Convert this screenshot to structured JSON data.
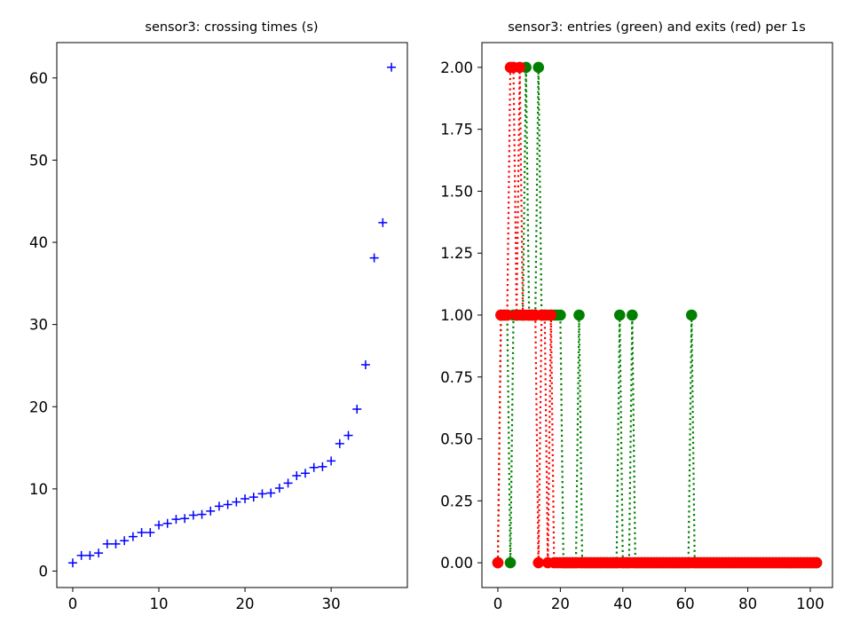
{
  "chart_data": [
    {
      "type": "scatter",
      "title": "sensor3: crossing times (s)",
      "xlim": [
        -1.85,
        38.85
      ],
      "ylim": [
        -2.0,
        64.3
      ],
      "xticks": [
        0,
        10,
        20,
        30
      ],
      "yticks": [
        0,
        10,
        20,
        30,
        40,
        50,
        60
      ],
      "grid": false,
      "series": [
        {
          "marker": "plus",
          "color": "#0000ff",
          "x": [
            0,
            1,
            2,
            3,
            4,
            5,
            6,
            7,
            8,
            9,
            10,
            11,
            12,
            13,
            14,
            15,
            16,
            17,
            18,
            19,
            20,
            21,
            22,
            23,
            24,
            25,
            26,
            27,
            28,
            29,
            30,
            31,
            32,
            33,
            34,
            35,
            36,
            37
          ],
          "y": [
            1.0,
            1.9,
            1.9,
            2.2,
            3.3,
            3.3,
            3.7,
            4.2,
            4.7,
            4.7,
            5.6,
            5.8,
            6.3,
            6.4,
            6.8,
            6.9,
            7.3,
            7.9,
            8.1,
            8.4,
            8.8,
            9.0,
            9.4,
            9.5,
            10.1,
            10.7,
            11.6,
            11.9,
            12.6,
            12.7,
            13.4,
            15.5,
            16.5,
            19.7,
            25.1,
            38.1,
            42.4,
            61.3
          ]
        }
      ]
    },
    {
      "type": "line",
      "title": "sensor3: entries (green) and exits (red) per 1s",
      "xlim": [
        -5.1,
        107.1
      ],
      "ylim": [
        -0.1,
        2.1
      ],
      "xticks": [
        0,
        20,
        40,
        60,
        80,
        100
      ],
      "yticks": [
        "0.00",
        "0.25",
        "0.50",
        "0.75",
        "1.00",
        "1.25",
        "1.50",
        "1.75",
        "2.00"
      ],
      "grid": false,
      "series": [
        {
          "name": "entries",
          "color": "#008000",
          "style": "dotted",
          "marker": "circle",
          "points": [
            [
              0,
              0
            ],
            [
              1,
              1
            ],
            [
              2,
              1
            ],
            [
              3,
              1
            ],
            [
              4,
              0
            ],
            [
              5,
              1
            ],
            [
              6,
              1
            ],
            [
              7,
              1
            ],
            [
              8,
              1
            ],
            [
              9,
              2
            ],
            [
              10,
              1
            ],
            [
              11,
              1
            ],
            [
              12,
              1
            ],
            [
              13,
              2
            ],
            [
              14,
              1
            ],
            [
              15,
              1
            ],
            [
              16,
              1
            ],
            [
              17,
              1
            ],
            [
              18,
              1
            ],
            [
              19,
              1
            ],
            [
              20,
              1
            ],
            [
              21,
              0
            ],
            [
              22,
              0
            ],
            [
              23,
              0
            ],
            [
              24,
              0
            ],
            [
              25,
              0
            ],
            [
              26,
              1
            ],
            [
              27,
              0
            ],
            [
              28,
              0
            ],
            [
              29,
              0
            ],
            [
              30,
              0
            ],
            [
              31,
              0
            ],
            [
              32,
              0
            ],
            [
              33,
              0
            ],
            [
              34,
              0
            ],
            [
              35,
              0
            ],
            [
              36,
              0
            ],
            [
              37,
              0
            ],
            [
              38,
              0
            ],
            [
              39,
              1
            ],
            [
              40,
              0
            ],
            [
              41,
              0
            ],
            [
              42,
              0
            ],
            [
              43,
              1
            ],
            [
              44,
              0
            ],
            [
              45,
              0
            ],
            [
              46,
              0
            ],
            [
              47,
              0
            ],
            [
              48,
              0
            ],
            [
              49,
              0
            ],
            [
              50,
              0
            ],
            [
              51,
              0
            ],
            [
              52,
              0
            ],
            [
              53,
              0
            ],
            [
              54,
              0
            ],
            [
              55,
              0
            ],
            [
              56,
              0
            ],
            [
              57,
              0
            ],
            [
              58,
              0
            ],
            [
              59,
              0
            ],
            [
              60,
              0
            ],
            [
              61,
              0
            ],
            [
              62,
              1
            ],
            [
              63,
              0
            ],
            [
              64,
              0
            ],
            [
              65,
              0
            ],
            [
              66,
              0
            ],
            [
              67,
              0
            ],
            [
              68,
              0
            ],
            [
              69,
              0
            ],
            [
              70,
              0
            ],
            [
              71,
              0
            ],
            [
              72,
              0
            ],
            [
              73,
              0
            ],
            [
              74,
              0
            ],
            [
              75,
              0
            ],
            [
              76,
              0
            ],
            [
              77,
              0
            ],
            [
              78,
              0
            ],
            [
              79,
              0
            ],
            [
              80,
              0
            ],
            [
              81,
              0
            ],
            [
              82,
              0
            ],
            [
              83,
              0
            ],
            [
              84,
              0
            ],
            [
              85,
              0
            ],
            [
              86,
              0
            ],
            [
              87,
              0
            ],
            [
              88,
              0
            ],
            [
              89,
              0
            ],
            [
              90,
              0
            ],
            [
              91,
              0
            ],
            [
              92,
              0
            ],
            [
              93,
              0
            ],
            [
              94,
              0
            ],
            [
              95,
              0
            ],
            [
              96,
              0
            ],
            [
              97,
              0
            ],
            [
              98,
              0
            ],
            [
              99,
              0
            ],
            [
              100,
              0
            ],
            [
              101,
              0
            ],
            [
              102,
              0
            ]
          ]
        },
        {
          "name": "exits",
          "color": "#ff0000",
          "style": "dotted",
          "marker": "circle",
          "points": [
            [
              0,
              0
            ],
            [
              1,
              1
            ],
            [
              2,
              1
            ],
            [
              3,
              1
            ],
            [
              4,
              2
            ],
            [
              5,
              2
            ],
            [
              6,
              1
            ],
            [
              7,
              2
            ],
            [
              8,
              1
            ],
            [
              9,
              1
            ],
            [
              10,
              1
            ],
            [
              11,
              1
            ],
            [
              12,
              1
            ],
            [
              13,
              0
            ],
            [
              14,
              1
            ],
            [
              15,
              1
            ],
            [
              16,
              0
            ],
            [
              17,
              1
            ],
            [
              18,
              0
            ],
            [
              19,
              0
            ],
            [
              20,
              0
            ],
            [
              21,
              0
            ],
            [
              22,
              0
            ],
            [
              23,
              0
            ],
            [
              24,
              0
            ],
            [
              25,
              0
            ],
            [
              26,
              0
            ],
            [
              27,
              0
            ],
            [
              28,
              0
            ],
            [
              29,
              0
            ],
            [
              30,
              0
            ],
            [
              31,
              0
            ],
            [
              32,
              0
            ],
            [
              33,
              0
            ],
            [
              34,
              0
            ],
            [
              35,
              0
            ],
            [
              36,
              0
            ],
            [
              37,
              0
            ],
            [
              38,
              0
            ],
            [
              39,
              0
            ],
            [
              40,
              0
            ],
            [
              41,
              0
            ],
            [
              42,
              0
            ],
            [
              43,
              0
            ],
            [
              44,
              0
            ],
            [
              45,
              0
            ],
            [
              46,
              0
            ],
            [
              47,
              0
            ],
            [
              48,
              0
            ],
            [
              49,
              0
            ],
            [
              50,
              0
            ],
            [
              51,
              0
            ],
            [
              52,
              0
            ],
            [
              53,
              0
            ],
            [
              54,
              0
            ],
            [
              55,
              0
            ],
            [
              56,
              0
            ],
            [
              57,
              0
            ],
            [
              58,
              0
            ],
            [
              59,
              0
            ],
            [
              60,
              0
            ],
            [
              61,
              0
            ],
            [
              62,
              0
            ],
            [
              63,
              0
            ],
            [
              64,
              0
            ],
            [
              65,
              0
            ],
            [
              66,
              0
            ],
            [
              67,
              0
            ],
            [
              68,
              0
            ],
            [
              69,
              0
            ],
            [
              70,
              0
            ],
            [
              71,
              0
            ],
            [
              72,
              0
            ],
            [
              73,
              0
            ],
            [
              74,
              0
            ],
            [
              75,
              0
            ],
            [
              76,
              0
            ],
            [
              77,
              0
            ],
            [
              78,
              0
            ],
            [
              79,
              0
            ],
            [
              80,
              0
            ],
            [
              81,
              0
            ],
            [
              82,
              0
            ],
            [
              83,
              0
            ],
            [
              84,
              0
            ],
            [
              85,
              0
            ],
            [
              86,
              0
            ],
            [
              87,
              0
            ],
            [
              88,
              0
            ],
            [
              89,
              0
            ],
            [
              90,
              0
            ],
            [
              91,
              0
            ],
            [
              92,
              0
            ],
            [
              93,
              0
            ],
            [
              94,
              0
            ],
            [
              95,
              0
            ],
            [
              96,
              0
            ],
            [
              97,
              0
            ],
            [
              98,
              0
            ],
            [
              99,
              0
            ],
            [
              100,
              0
            ],
            [
              101,
              0
            ],
            [
              102,
              0
            ]
          ]
        }
      ]
    }
  ]
}
